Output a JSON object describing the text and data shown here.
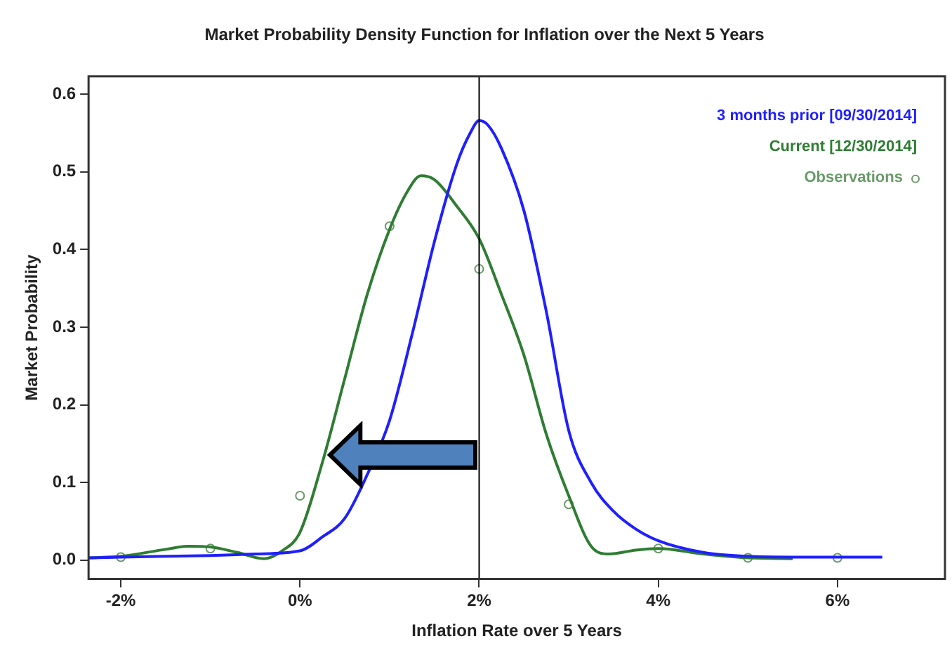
{
  "chart_data": {
    "type": "line",
    "title": "Market Probability Density Function for Inflation over the Next 5 Years",
    "xlabel": "Inflation Rate over 5 Years",
    "ylabel": "Market Probability",
    "xlim": [
      -2.36,
      7.2
    ],
    "ylim": [
      -0.024,
      0.623
    ],
    "xticks": [
      {
        "value": -2,
        "label": "-2%"
      },
      {
        "value": 0,
        "label": "0%"
      },
      {
        "value": 2,
        "label": "2%"
      },
      {
        "value": 4,
        "label": "4%"
      },
      {
        "value": 6,
        "label": "6%"
      }
    ],
    "yticks": [
      {
        "value": 0,
        "label": "0.0"
      },
      {
        "value": 0.1,
        "label": "0.1"
      },
      {
        "value": 0.2,
        "label": "0.2"
      },
      {
        "value": 0.3,
        "label": "0.3"
      },
      {
        "value": 0.4,
        "label": "0.4"
      },
      {
        "value": 0.5,
        "label": "0.5"
      },
      {
        "value": 0.6,
        "label": "0.6"
      }
    ],
    "grid": false,
    "legend": "top right",
    "line_style": "solid",
    "ref_lines": [
      {
        "axis": "x",
        "value": 2,
        "label": null,
        "color": "#000000"
      }
    ],
    "series": [
      {
        "name": "3 months prior [09/30/2014]",
        "type": "line",
        "color": "#1f1fff",
        "marker": "none",
        "x": [
          -2.36,
          -2,
          -1,
          -0.5,
          0,
          0.25,
          0.5,
          0.75,
          1,
          1.25,
          1.5,
          1.75,
          1.9,
          2,
          2.1,
          2.25,
          2.5,
          2.75,
          3,
          3.25,
          3.5,
          3.75,
          4,
          4.5,
          5,
          5.5,
          6,
          6.5
        ],
        "values": [
          0.003,
          0.004,
          0.006,
          0.008,
          0.012,
          0.03,
          0.054,
          0.11,
          0.18,
          0.29,
          0.41,
          0.51,
          0.55,
          0.566,
          0.56,
          0.53,
          0.45,
          0.32,
          0.167,
          0.1,
          0.063,
          0.04,
          0.025,
          0.01,
          0.005,
          0.004,
          0.004,
          0.004
        ]
      },
      {
        "name": "Current [12/30/2014]",
        "type": "line",
        "color": "#2e7d32",
        "marker": "none",
        "x": [
          -2.36,
          -2,
          -1.5,
          -1.25,
          -1,
          -0.7,
          -0.4,
          -0.2,
          0,
          0.25,
          0.5,
          0.75,
          1,
          1.2,
          1.35,
          1.5,
          1.75,
          2,
          2.25,
          2.5,
          2.75,
          3,
          3.25,
          3.45,
          3.75,
          4,
          4.5,
          5,
          5.5
        ],
        "values": [
          0.003,
          0.005,
          0.014,
          0.018,
          0.017,
          0.01,
          0.002,
          0.012,
          0.036,
          0.126,
          0.234,
          0.342,
          0.426,
          0.475,
          0.495,
          0.49,
          0.456,
          0.414,
          0.342,
          0.264,
          0.162,
          0.083,
          0.018,
          0.008,
          0.013,
          0.015,
          0.008,
          0.003,
          0.002
        ]
      },
      {
        "name": "Observations",
        "type": "scatter",
        "color": "#6a9a6a",
        "marker": "circle",
        "x": [
          -2,
          -1,
          0,
          1,
          2,
          3,
          4,
          5,
          6
        ],
        "values": [
          0.004,
          0.015,
          0.083,
          0.43,
          0.375,
          0.072,
          0.015,
          0.003,
          0.003
        ]
      }
    ]
  }
}
